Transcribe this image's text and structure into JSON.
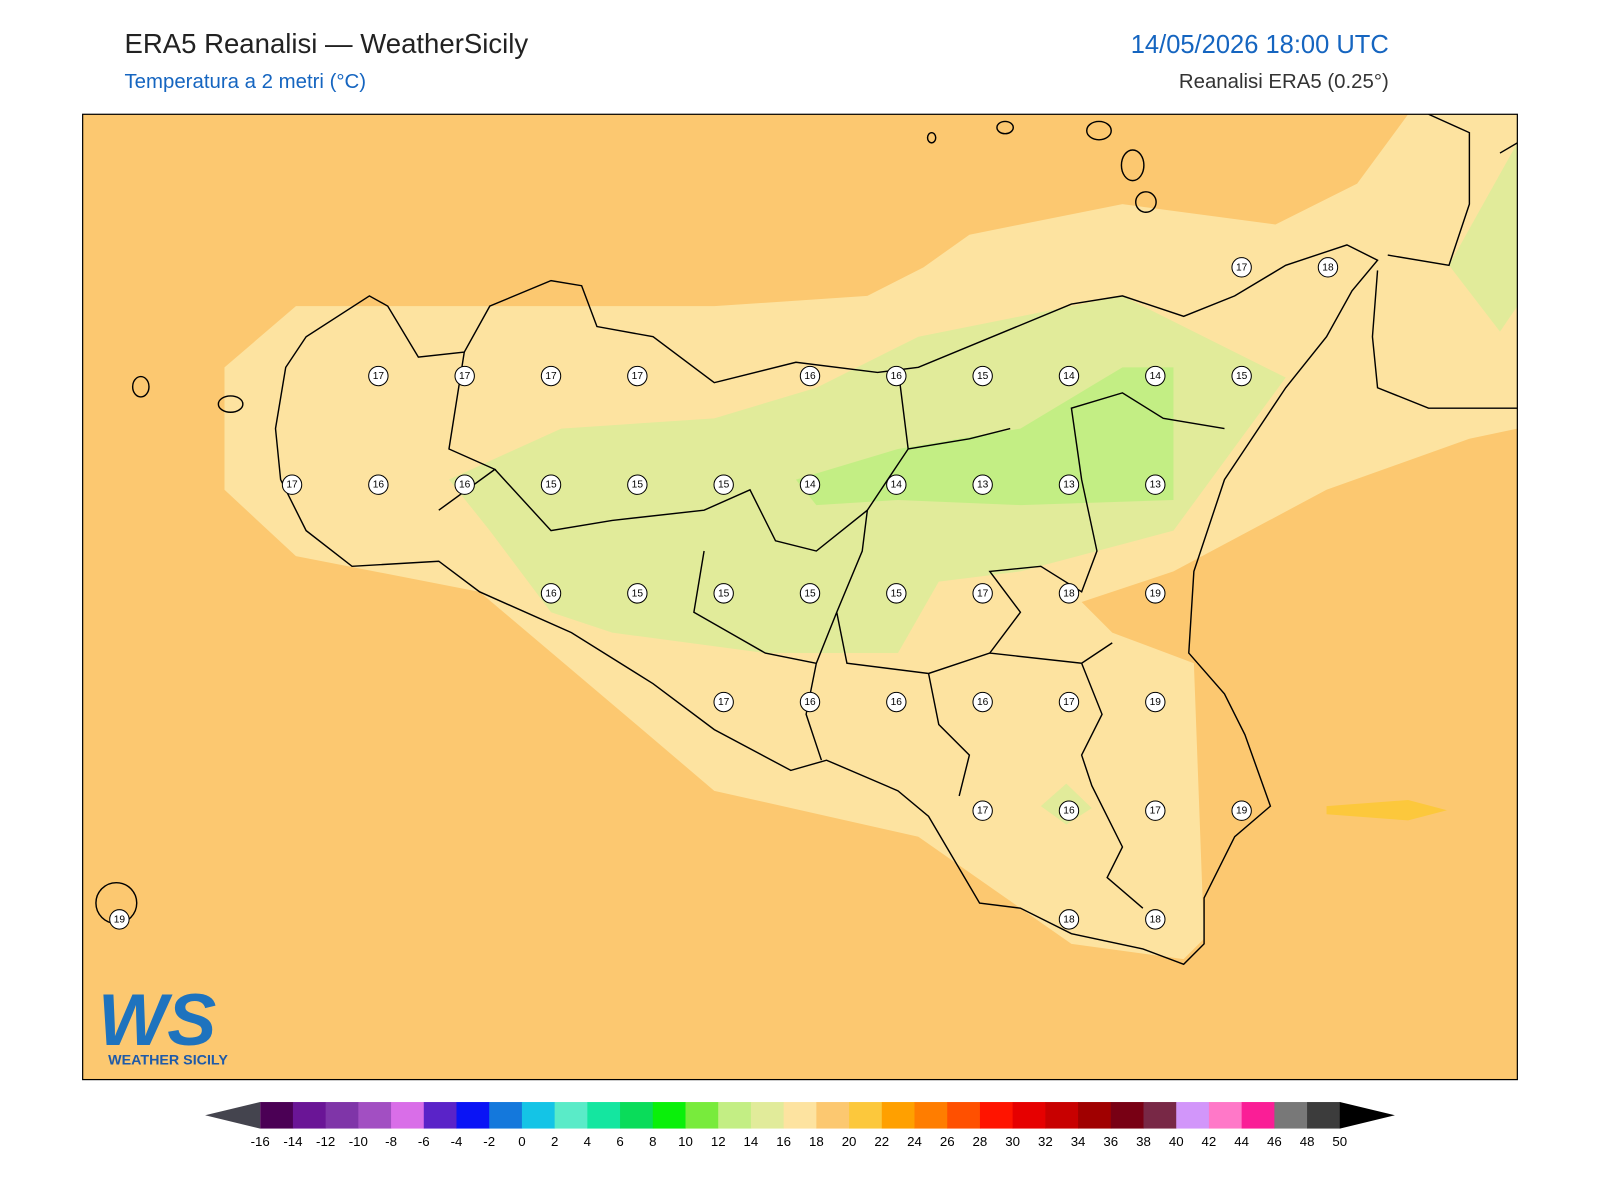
{
  "header": {
    "title": "ERA5 Reanalisi — WeatherSicily",
    "subtitle": "Temperatura a 2 metri (°C)",
    "datetime": "14/05/2026 18:00 UTC",
    "source": "Reanalisi ERA5 (0.25°)"
  },
  "grid": {
    "rows": [
      [
        null,
        null,
        null,
        null,
        null,
        null,
        null,
        null,
        null,
        null,
        null,
        null,
        null,
        17,
        18
      ],
      [
        null,
        null,
        null,
        17,
        17,
        17,
        17,
        null,
        16,
        16,
        15,
        14,
        14,
        15,
        null
      ],
      [
        null,
        null,
        17,
        16,
        16,
        15,
        15,
        15,
        14,
        14,
        13,
        13,
        13,
        null,
        null
      ],
      [
        null,
        null,
        null,
        null,
        null,
        16,
        15,
        15,
        15,
        15,
        17,
        18,
        19,
        null,
        null
      ],
      [
        null,
        null,
        null,
        null,
        null,
        null,
        null,
        17,
        16,
        16,
        16,
        17,
        19,
        null,
        null
      ],
      [
        null,
        null,
        null,
        null,
        null,
        null,
        null,
        null,
        null,
        null,
        17,
        16,
        17,
        19,
        null
      ],
      [
        19,
        null,
        null,
        null,
        null,
        null,
        null,
        null,
        null,
        null,
        null,
        18,
        18,
        null,
        null
      ]
    ]
  },
  "colorbar": {
    "ticks": [
      -16,
      -14,
      -12,
      -10,
      -8,
      -6,
      -4,
      -2,
      0,
      2,
      4,
      6,
      8,
      10,
      12,
      14,
      16,
      18,
      20,
      22,
      24,
      26,
      28,
      30,
      32,
      34,
      36,
      38,
      40,
      42,
      44,
      46,
      48,
      50
    ],
    "colors": [
      "#4b0055",
      "#6a1596",
      "#7f35a8",
      "#a24fc2",
      "#d96ee8",
      "#5a23c8",
      "#0a14f5",
      "#1478dc",
      "#14c4e6",
      "#5aebc8",
      "#14e6a0",
      "#0adc5a",
      "#0af00a",
      "#78eb3c",
      "#c3ee84",
      "#e1eb9a",
      "#fde3a0",
      "#fcc870",
      "#fcc83c",
      "#ffa000",
      "#ff7d00",
      "#ff5000",
      "#ff1400",
      "#e60000",
      "#c80000",
      "#a00000",
      "#780014",
      "#782846",
      "#d296fa",
      "#ff78c8",
      "#fa1e96",
      "#787878",
      "#3c3c3c"
    ],
    "extend_colors": [
      "#44444e",
      "#000000"
    ]
  },
  "logo": {
    "mark": "WS",
    "name": "WEATHER SICILY"
  }
}
